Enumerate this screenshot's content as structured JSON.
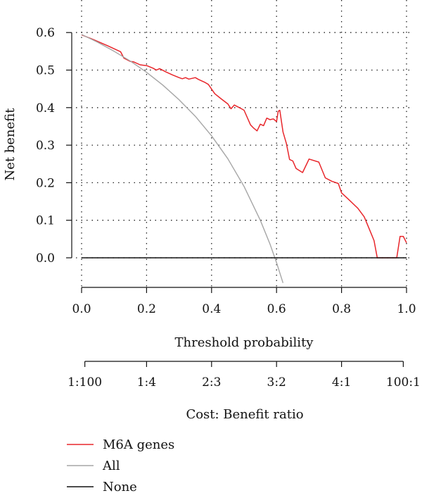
{
  "chart_data": {
    "type": "line",
    "xlabel": "Threshold probability",
    "ylabel": "Net benefit",
    "xlim": [
      0.0,
      1.0
    ],
    "ylim": [
      -0.08,
      0.65
    ],
    "x_ticks": [
      "0.0",
      "0.2",
      "0.4",
      "0.6",
      "0.8",
      "1.0"
    ],
    "y_ticks": [
      "0.0",
      "0.1",
      "0.2",
      "0.3",
      "0.4",
      "0.5",
      "0.6"
    ],
    "grid": true,
    "secondary_axis": {
      "label": "Cost: Benefit ratio",
      "positions": [
        0.01,
        0.2,
        0.4,
        0.6,
        0.8,
        0.99
      ],
      "tick_labels": [
        "1:100",
        "1:4",
        "2:3",
        "3:2",
        "4:1",
        "100:1"
      ]
    },
    "legend_position": "bottom-left",
    "series": [
      {
        "name": "M6A genes",
        "color": "#e8262b",
        "x": [
          0.0,
          0.04,
          0.08,
          0.12,
          0.13,
          0.15,
          0.16,
          0.18,
          0.19,
          0.2,
          0.22,
          0.23,
          0.24,
          0.26,
          0.28,
          0.3,
          0.31,
          0.32,
          0.33,
          0.35,
          0.36,
          0.38,
          0.39,
          0.41,
          0.43,
          0.45,
          0.46,
          0.47,
          0.49,
          0.5,
          0.52,
          0.53,
          0.54,
          0.55,
          0.56,
          0.57,
          0.58,
          0.59,
          0.6,
          0.605,
          0.61,
          0.62,
          0.63,
          0.64,
          0.65,
          0.66,
          0.68,
          0.7,
          0.73,
          0.75,
          0.77,
          0.79,
          0.8,
          0.82,
          0.85,
          0.87,
          0.89,
          0.9,
          0.91,
          0.97,
          0.98,
          0.99,
          1.0
        ],
        "y": [
          0.594,
          0.58,
          0.565,
          0.549,
          0.532,
          0.523,
          0.522,
          0.514,
          0.513,
          0.512,
          0.505,
          0.5,
          0.504,
          0.495,
          0.487,
          0.48,
          0.477,
          0.48,
          0.476,
          0.48,
          0.475,
          0.467,
          0.462,
          0.437,
          0.423,
          0.41,
          0.397,
          0.407,
          0.398,
          0.393,
          0.354,
          0.345,
          0.338,
          0.356,
          0.352,
          0.372,
          0.368,
          0.37,
          0.363,
          0.39,
          0.393,
          0.335,
          0.305,
          0.262,
          0.258,
          0.238,
          0.227,
          0.263,
          0.255,
          0.213,
          0.204,
          0.198,
          0.173,
          0.157,
          0.132,
          0.109,
          0.067,
          0.046,
          0.0,
          0.0,
          0.057,
          0.057,
          0.04
        ]
      },
      {
        "name": "All",
        "color": "#a6a6a6",
        "x": [
          0.0,
          0.05,
          0.1,
          0.15,
          0.2,
          0.25,
          0.3,
          0.35,
          0.4,
          0.45,
          0.5,
          0.55,
          0.58,
          0.6,
          0.62
        ],
        "y": [
          0.595,
          0.574,
          0.55,
          0.524,
          0.494,
          0.46,
          0.421,
          0.377,
          0.325,
          0.264,
          0.19,
          0.1,
          0.036,
          -0.013,
          -0.067
        ]
      },
      {
        "name": "None",
        "color": "#111111",
        "x": [
          0.0,
          1.0
        ],
        "y": [
          0.0,
          0.0
        ]
      }
    ]
  }
}
